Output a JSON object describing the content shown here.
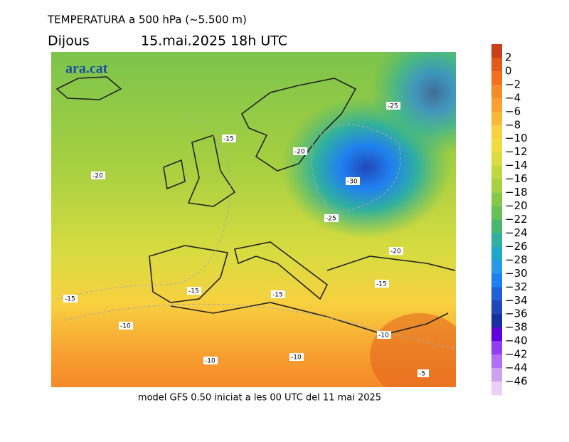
{
  "header": {
    "title": "TEMPERATURA a 500 hPa (~5.500 m)",
    "day": "Dijous",
    "datetime": "15.mai.2025 18h UTC"
  },
  "logo": "ara.cat",
  "contour_labels": [
    "-15",
    "-20",
    "-20",
    "-25",
    "-30",
    "-25",
    "-20",
    "-15",
    "-15",
    "-15",
    "-10",
    "-10",
    "-10",
    "-10",
    "-5",
    "-15"
  ],
  "colorbar": {
    "labels": [
      "2",
      "0",
      "−2",
      "−4",
      "−6",
      "−8",
      "−10",
      "−12",
      "−14",
      "−16",
      "−18",
      "−20",
      "−22",
      "−24",
      "−26",
      "−28",
      "−30",
      "−32",
      "−34",
      "−36",
      "−38",
      "−40",
      "−42",
      "−44",
      "−46"
    ],
    "colors": [
      "#c8401a",
      "#e05a1a",
      "#f07020",
      "#f58a28",
      "#f8a030",
      "#f8b838",
      "#f8d040",
      "#f0dc40",
      "#d8dc40",
      "#c0d840",
      "#a8d040",
      "#88c848",
      "#68c058",
      "#48b870",
      "#30b0a0",
      "#20a8c8",
      "#2898e8",
      "#2080f0",
      "#2060d8",
      "#2048b8",
      "#1830a0",
      "#6000e0",
      "#9040f0",
      "#b070f0",
      "#d0a0f0",
      "#e8d0f8"
    ]
  },
  "footer": "model GFS 0.50 iniciat a les 00 UTC del 11 mai 2025"
}
